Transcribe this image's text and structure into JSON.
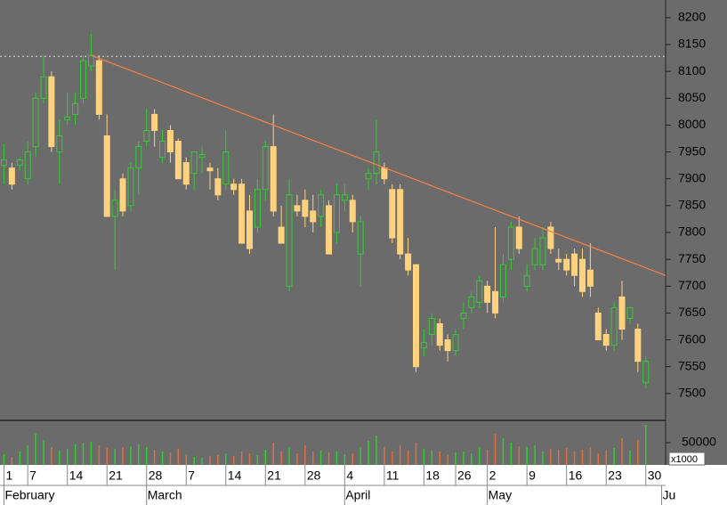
{
  "chart_data": {
    "type": "candlestick",
    "categories": [
      "1",
      null,
      null,
      "7",
      null,
      null,
      null,
      null,
      "14",
      null,
      null,
      null,
      null,
      "21",
      null,
      null,
      null,
      null,
      "28",
      null,
      null,
      null,
      null,
      "7",
      null,
      null,
      null,
      null,
      "14",
      null,
      null,
      null,
      null,
      "21",
      null,
      null,
      null,
      null,
      "28",
      null,
      null,
      null,
      null,
      "4",
      null,
      null,
      null,
      null,
      "11",
      null,
      null,
      null,
      null,
      "18",
      null,
      null,
      null,
      "26",
      null,
      null,
      null,
      "2",
      null,
      null,
      null,
      null,
      "9",
      null,
      null,
      null,
      null,
      "16",
      null,
      null,
      null,
      null,
      "23",
      null,
      null,
      null,
      null,
      "30"
    ],
    "months": [
      {
        "label": "February",
        "index": 0
      },
      {
        "label": "March",
        "index": 18
      },
      {
        "label": "April",
        "index": 43
      },
      {
        "label": "May",
        "index": 61
      },
      {
        "label": "Ju",
        "index": 83
      }
    ],
    "open": [
      7925,
      7920,
      7925,
      7900,
      7960,
      8050,
      8090,
      7950,
      8010,
      8020,
      8050,
      8110,
      8120,
      7980,
      7830,
      7900,
      7850,
      7920,
      7970,
      8020,
      7940,
      7990,
      7970,
      7930,
      7910,
      7940,
      7920,
      7900,
      7890,
      7890,
      7890,
      7840,
      7810,
      7880,
      7960,
      7810,
      7700,
      7850,
      7860,
      7840,
      7830,
      7850,
      7800,
      7860,
      7860,
      7760,
      7900,
      7910,
      7920,
      7880,
      7880,
      7760,
      7740,
      7585,
      7610,
      7630,
      7600,
      7580,
      7640,
      7660,
      7670,
      7700,
      7690,
      7680,
      7750,
      7810,
      7700,
      7740,
      7740,
      7810,
      7750,
      7750,
      7760,
      7750,
      7730,
      7650,
      7610,
      7590,
      7680,
      7640,
      7620,
      7520
    ],
    "high": [
      7965,
      7930,
      7940,
      7970,
      8060,
      8130,
      8100,
      8010,
      8060,
      8060,
      8130,
      8170,
      8130,
      8020,
      7880,
      7910,
      7930,
      7970,
      8030,
      8030,
      7990,
      8000,
      7975,
      7940,
      7950,
      7960,
      7930,
      7920,
      7990,
      7900,
      7900,
      7870,
      7900,
      7970,
      8020,
      7850,
      7900,
      7870,
      7880,
      7870,
      7880,
      7860,
      7890,
      7890,
      7870,
      7830,
      7920,
      8010,
      7930,
      7890,
      7890,
      7790,
      7740,
      7620,
      7650,
      7640,
      7610,
      7620,
      7670,
      7690,
      7720,
      7710,
      7810,
      7760,
      7820,
      7830,
      7740,
      7790,
      7810,
      7820,
      7770,
      7760,
      7770,
      7770,
      7780,
      7660,
      7620,
      7670,
      7710,
      7660,
      7630,
      7570
    ],
    "low": [
      7890,
      7880,
      7915,
      7890,
      7940,
      8040,
      7950,
      7890,
      8000,
      8000,
      8040,
      8100,
      8010,
      7830,
      7730,
      7830,
      7840,
      7870,
      7960,
      7960,
      7930,
      7930,
      7900,
      7880,
      7880,
      7910,
      7880,
      7860,
      7880,
      7870,
      7780,
      7760,
      7800,
      7860,
      7830,
      7780,
      7690,
      7830,
      7810,
      7800,
      7810,
      7760,
      7780,
      7840,
      7800,
      7700,
      7880,
      7890,
      7890,
      7780,
      7750,
      7720,
      7540,
      7570,
      7590,
      7580,
      7560,
      7570,
      7620,
      7650,
      7660,
      7650,
      7640,
      7670,
      7730,
      7760,
      7690,
      7730,
      7730,
      7760,
      7730,
      7720,
      7700,
      7680,
      7680,
      7600,
      7580,
      7580,
      7600,
      7630,
      7540,
      7510
    ],
    "close": [
      7935,
      7890,
      7935,
      7950,
      8050,
      8090,
      7960,
      7980,
      8015,
      8040,
      8120,
      8130,
      8020,
      7830,
      7860,
      7840,
      7920,
      7960,
      7990,
      7990,
      7970,
      7950,
      7900,
      7890,
      7950,
      7945,
      7915,
      7870,
      7950,
      7880,
      7780,
      7770,
      7880,
      7960,
      7840,
      7780,
      7870,
      7840,
      7830,
      7820,
      7870,
      7760,
      7870,
      7870,
      7820,
      7820,
      7910,
      7950,
      7900,
      7790,
      7760,
      7730,
      7550,
      7595,
      7640,
      7590,
      7580,
      7610,
      7650,
      7680,
      7710,
      7670,
      7650,
      7740,
      7810,
      7770,
      7720,
      7770,
      7790,
      7770,
      7745,
      7730,
      7720,
      7690,
      7700,
      7600,
      7590,
      7660,
      7620,
      7660,
      7560,
      7560
    ],
    "volume": [
      24000,
      18000,
      30000,
      44000,
      70000,
      56000,
      40000,
      32000,
      36000,
      46000,
      50000,
      52000,
      44000,
      38000,
      36000,
      40000,
      42000,
      46000,
      40000,
      34000,
      30000,
      28000,
      36000,
      24000,
      18000,
      16000,
      20000,
      22000,
      26000,
      20000,
      30000,
      26000,
      22000,
      34000,
      50000,
      30000,
      40000,
      26000,
      44000,
      30000,
      32000,
      28000,
      30000,
      24000,
      26000,
      40000,
      54000,
      66000,
      40000,
      30000,
      44000,
      32000,
      50000,
      36000,
      32000,
      30000,
      24000,
      28000,
      30000,
      26000,
      40000,
      34000,
      70000,
      60000,
      50000,
      42000,
      40000,
      44000,
      30000,
      36000,
      34000,
      38000,
      30000,
      34000,
      40000,
      26000,
      32000,
      38000,
      60000,
      32000,
      56000,
      90000
    ],
    "xlim": [
      -0.5,
      83.5
    ],
    "ylim": [
      7450,
      8233
    ],
    "yticks": [
      7500,
      7550,
      7600,
      7650,
      7700,
      7750,
      7800,
      7850,
      7900,
      7950,
      8000,
      8050,
      8100,
      8150,
      8200
    ],
    "volume_ylim": [
      0,
      100000
    ],
    "volume_yticks": [
      50000
    ],
    "volume_unit": "x1000",
    "up_color": "#33cc33",
    "down_color": "#ffd27f",
    "trendline": {
      "x": [
        11,
        83.5
      ],
      "values": [
        8130,
        7720
      ],
      "color": "#ff7f3f"
    },
    "reference_line": 8128
  }
}
